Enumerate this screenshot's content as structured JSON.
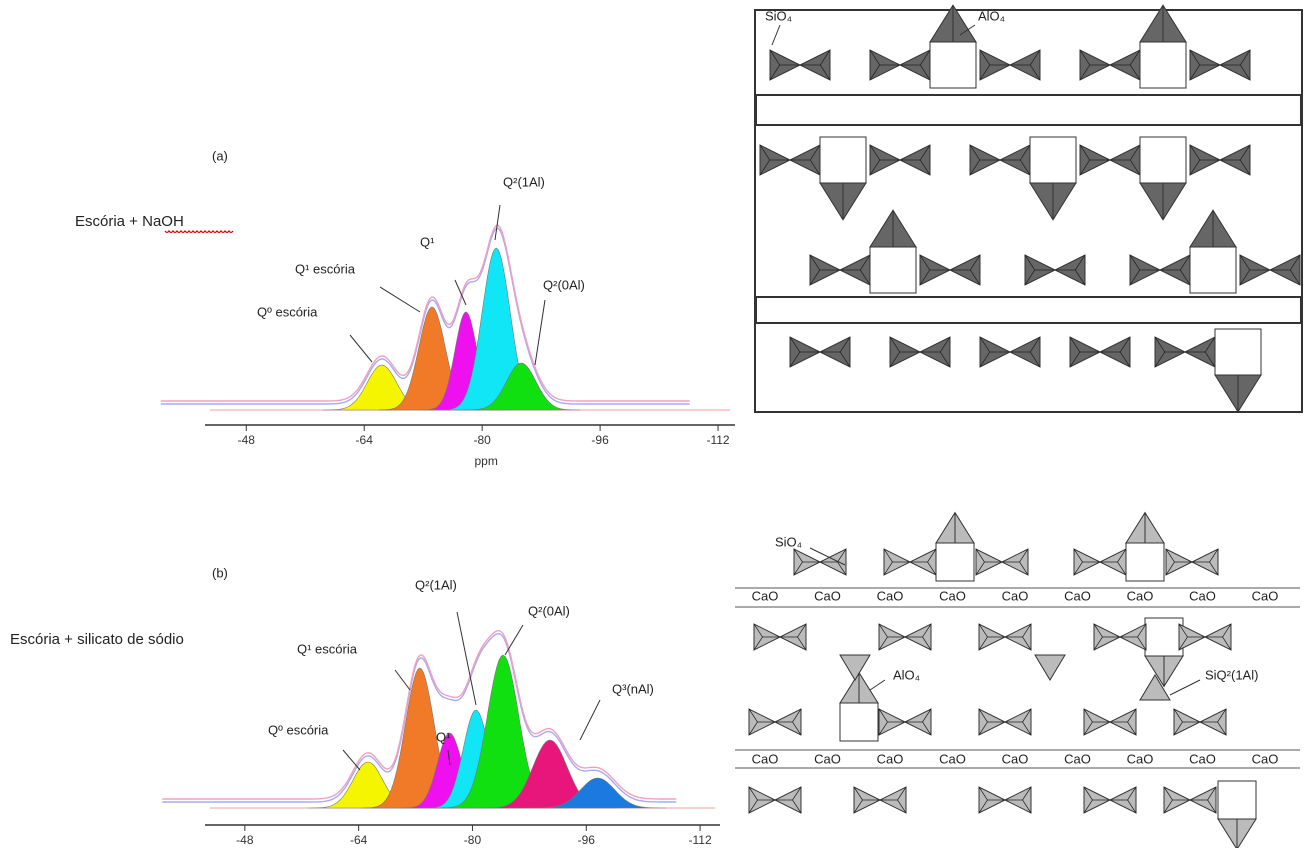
{
  "chart_data": [
    {
      "type": "area",
      "label": "(a)",
      "sample": "Escória + NaOH",
      "xlabel": "ppm",
      "xlim": [
        -42.4,
        -114.3
      ],
      "xticks": [
        -48,
        -64,
        -80,
        -96,
        -112
      ],
      "peaks": [
        {
          "color": "#f5f500",
          "center": -66.4,
          "height": 45,
          "width": 2.0
        },
        {
          "color": "#f07a28",
          "center": -73.2,
          "height": 103,
          "width": 1.8
        },
        {
          "color": "#ee10ee",
          "center": -77.8,
          "height": 98,
          "width": 1.5
        },
        {
          "color": "#10e6f5",
          "center": -81.9,
          "height": 162,
          "width": 1.9
        },
        {
          "color": "#10e010",
          "center": -85.3,
          "height": 47,
          "width": 2.0
        }
      ],
      "annotations": [
        "Qº escória",
        "Q¹ escória",
        "Q¹",
        "Q²(1Al)",
        "Q²(0Al)"
      ]
    },
    {
      "type": "area",
      "label": "(b)",
      "sample": "Escória + silicato de sódio",
      "xlim": [
        -42.4,
        -114.8
      ],
      "xticks": [
        -48,
        -64,
        -80,
        -96,
        -112
      ],
      "peaks": [
        {
          "color": "#f5f500",
          "center": -65.3,
          "height": 46,
          "width": 2.1
        },
        {
          "color": "#f07a28",
          "center": -72.6,
          "height": 140,
          "width": 2.0
        },
        {
          "color": "#ee10ee",
          "center": -76.8,
          "height": 75,
          "width": 1.7
        },
        {
          "color": "#10e6f5",
          "center": -80.5,
          "height": 98,
          "width": 1.8
        },
        {
          "color": "#10e010",
          "center": -84.3,
          "height": 153,
          "width": 2.2
        },
        {
          "color": "#e8157a",
          "center": -90.9,
          "height": 68,
          "width": 2.4
        },
        {
          "color": "#1a7ae0",
          "center": -97.6,
          "height": 30,
          "width": 2.4
        }
      ],
      "annotations": [
        "Qº escória",
        "Q¹ escória",
        "Q²(1Al)",
        "Q¹",
        "Q²(0Al)",
        "Q³(nAl)"
      ]
    }
  ],
  "diagrams": [
    {
      "labels": [
        "SiO₄",
        "AlO₄"
      ]
    },
    {
      "labels": [
        "SiO₄",
        "AlO₄",
        "SiQ²(1Al)"
      ],
      "rows": [
        [
          "CaO",
          "CaO",
          "CaO",
          "CaO",
          "CaO",
          "CaO",
          "CaO",
          "CaO",
          "CaO"
        ],
        [
          "CaO",
          "CaO",
          "CaO",
          "CaO",
          "CaO",
          "CaO",
          "CaO",
          "CaO",
          "CaO"
        ]
      ]
    }
  ]
}
